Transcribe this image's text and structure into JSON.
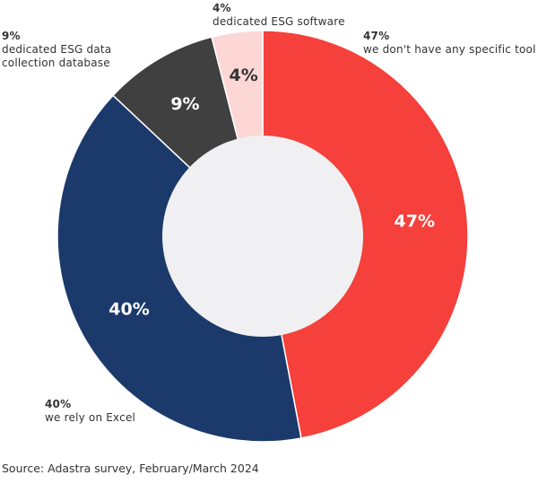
{
  "chart_data": {
    "type": "donut",
    "categories": [
      "we don't have any specific tool",
      "we rely on Excel",
      "dedicated ESG data collection database",
      "dedicated ESG software"
    ],
    "values": [
      47,
      40,
      9,
      4
    ],
    "value_labels": [
      "47%",
      "40%",
      "9%",
      "4%"
    ],
    "colors": [
      "#f5403b",
      "#1b3a6b",
      "#404040",
      "#fdd6d6"
    ],
    "source": "Source: Adastra survey, February/March 2024"
  }
}
